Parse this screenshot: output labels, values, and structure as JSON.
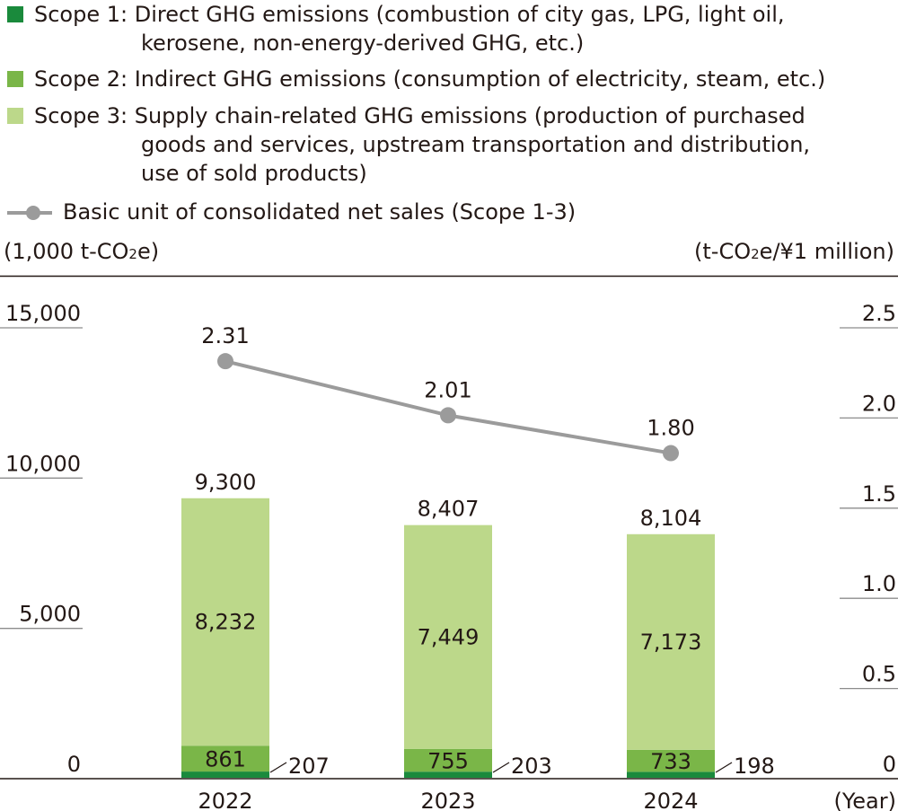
{
  "legend": {
    "scope1_line1": "Scope 1: Direct GHG emissions (combustion of city gas, LPG, light oil,",
    "scope1_line2": "kerosene, non-energy-derived GHG, etc.)",
    "scope2_line1": "Scope 2: Indirect GHG emissions (consumption of electricity, steam, etc.)",
    "scope3_line1": "Scope 3: Supply chain-related GHG emissions (production of purchased",
    "scope3_line2": "goods and services, upstream transportation and distribution,",
    "scope3_line3": "use of sold products)",
    "intensity": "Basic unit of consolidated net sales (Scope 1-3)"
  },
  "axes": {
    "left_unit_pre": "(1,000 t-CO",
    "left_unit_sub": "2",
    "left_unit_post": "e)",
    "right_unit_pre": "(t-CO",
    "right_unit_sub": "2",
    "right_unit_post": "e/¥1 million)",
    "x_unit": "(Year)"
  },
  "colors": {
    "scope1": "#1a8a3c",
    "scope2": "#7ab648",
    "scope3": "#bcd88a",
    "line": "#9b9b9b"
  },
  "chart_data": {
    "type": "bar",
    "stacked": true,
    "categories": [
      "2022",
      "2023",
      "2024"
    ],
    "series": [
      {
        "name": "Scope 1: Direct GHG emissions",
        "values": [
          207,
          203,
          198
        ]
      },
      {
        "name": "Scope 2: Indirect GHG emissions",
        "values": [
          861,
          755,
          733
        ]
      },
      {
        "name": "Scope 3: Supply chain-related GHG emissions",
        "values": [
          8232,
          7449,
          7173
        ]
      }
    ],
    "totals": [
      9300,
      8407,
      8104
    ],
    "value_labels": {
      "scope1": [
        "207",
        "203",
        "198"
      ],
      "scope2": [
        "861",
        "755",
        "733"
      ],
      "scope3": [
        "8,232",
        "7,449",
        "7,173"
      ],
      "totals": [
        "9,300",
        "8,407",
        "8,104"
      ]
    },
    "line_series": {
      "name": "Basic unit of consolidated net sales (Scope 1-3)",
      "axis": "right",
      "values": [
        2.31,
        2.01,
        1.8
      ],
      "labels": [
        "2.31",
        "2.01",
        "1.80"
      ]
    },
    "ylim": [
      0,
      15000
    ],
    "yticks": [
      "0",
      "5,000",
      "10,000",
      "15,000"
    ],
    "y2lim": [
      0,
      2.5
    ],
    "y2ticks": [
      "0",
      "0.5",
      "1.0",
      "1.5",
      "2.0",
      "2.5"
    ]
  }
}
